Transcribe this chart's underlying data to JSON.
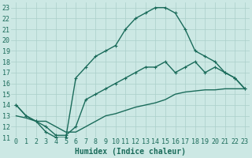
{
  "xlabel": "Humidex (Indice chaleur)",
  "background_color": "#cce8e4",
  "grid_color": "#aacfca",
  "line_color": "#1a6b5a",
  "xlim": [
    -0.5,
    23.5
  ],
  "ylim": [
    11,
    23.5
  ],
  "xticks": [
    0,
    1,
    2,
    3,
    4,
    5,
    6,
    7,
    8,
    9,
    10,
    11,
    12,
    13,
    14,
    15,
    16,
    17,
    18,
    19,
    20,
    21,
    22,
    23
  ],
  "yticks": [
    11,
    12,
    13,
    14,
    15,
    16,
    17,
    18,
    19,
    20,
    21,
    22,
    23
  ],
  "line1_x": [
    0,
    1,
    2,
    3,
    4,
    5,
    6,
    7,
    8,
    9,
    10,
    11,
    12,
    13,
    14,
    15,
    16,
    17,
    18,
    19,
    20,
    21,
    22,
    23
  ],
  "line1_y": [
    14,
    13,
    12.5,
    11.5,
    11,
    11,
    16.5,
    17.5,
    18.5,
    19,
    19.5,
    21,
    22,
    22.5,
    23,
    23,
    22.5,
    21,
    19,
    18.5,
    18,
    17,
    16.5,
    15.5
  ],
  "line2_x": [
    0,
    1,
    2,
    3,
    4,
    5,
    6,
    7,
    8,
    9,
    10,
    11,
    12,
    13,
    14,
    15,
    16,
    17,
    18,
    19,
    20,
    21,
    22,
    23
  ],
  "line2_y": [
    14,
    13,
    12.5,
    12,
    11.2,
    11.2,
    12,
    14.5,
    15,
    15.5,
    16,
    16.5,
    17,
    17.5,
    17.5,
    18,
    17,
    17.5,
    18,
    17,
    17.5,
    17,
    16.5,
    15.5
  ],
  "line3_x": [
    0,
    1,
    2,
    3,
    4,
    5,
    6,
    7,
    8,
    9,
    10,
    11,
    12,
    13,
    14,
    15,
    16,
    17,
    18,
    19,
    20,
    21,
    22,
    23
  ],
  "line3_y": [
    13,
    12.8,
    12.5,
    12.5,
    12,
    11.5,
    11.5,
    12,
    12.5,
    13,
    13.2,
    13.5,
    13.8,
    14,
    14.2,
    14.5,
    15,
    15.2,
    15.3,
    15.4,
    15.4,
    15.5,
    15.5,
    15.5
  ],
  "fontsize_xlabel": 7,
  "tick_fontsize": 6,
  "linewidth": 1.0,
  "marker": "+",
  "markersize": 3
}
